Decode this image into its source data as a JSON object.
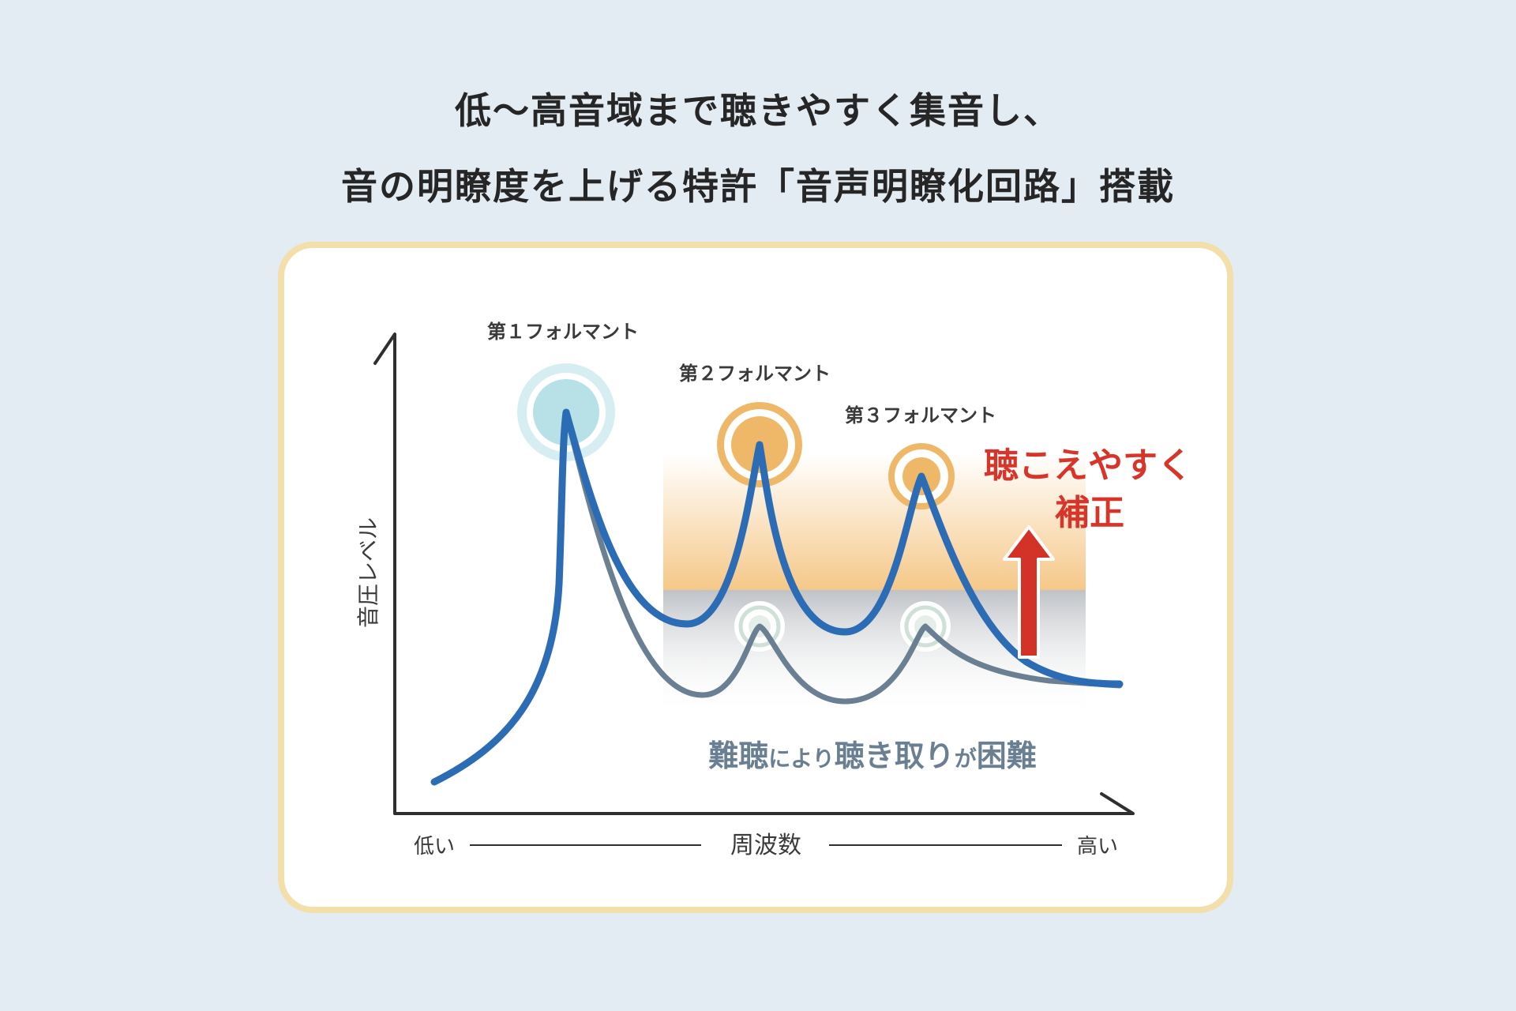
{
  "headline": {
    "line1": "低〜高音域まで聴きやすく集音し、",
    "line2": "音の明瞭度を上げる特許「音声明瞭化回路」搭載"
  },
  "diagram": {
    "formants": {
      "f1": "第１フォルマント",
      "f2": "第２フォルマント",
      "f3": "第３フォルマント"
    },
    "correction": {
      "line1": "聴こえやすく",
      "line2": "補正"
    },
    "hearing_loss_caption": {
      "part1": "難聴",
      "part2": "により",
      "part3": "聴き取り",
      "part4": "が",
      "part5": "困難"
    },
    "y_axis_label": "音圧レベル",
    "x_axis": {
      "low": "低い",
      "center": "周波数",
      "high": "高い"
    },
    "colors": {
      "corrected_curve": "#2b6cb5",
      "hearing_loss_curve": "#6b7f92",
      "f1_circle": "#b7e0e7",
      "f2_f3_circle": "#efb868",
      "correction_text": "#d8352a",
      "arrow": "#d33326",
      "band_top": "#f5c888",
      "band_gray": "#bfc2c6"
    }
  }
}
